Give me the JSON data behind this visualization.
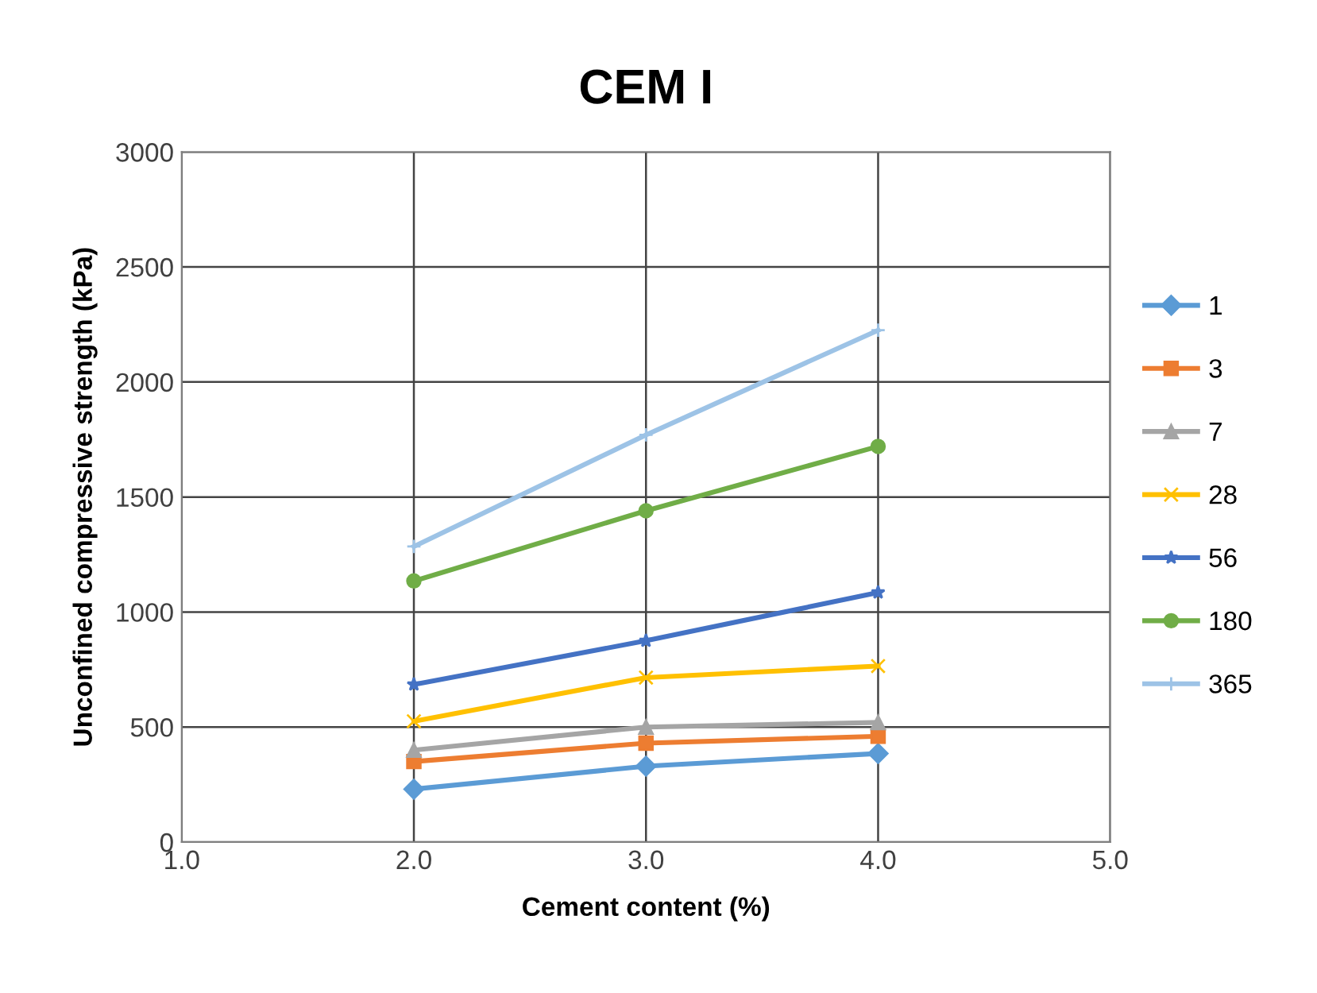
{
  "chart_data": {
    "type": "line",
    "title": "CEM I",
    "xlabel": "Cement content (%)",
    "ylabel": "Unconfined compressive strength (kPa)",
    "x": [
      2.0,
      3.0,
      4.0
    ],
    "xlim": [
      1.0,
      5.0
    ],
    "xticks": [
      {
        "value": 1.0,
        "label": "1.0"
      },
      {
        "value": 2.0,
        "label": "2.0"
      },
      {
        "value": 3.0,
        "label": "3.0"
      },
      {
        "value": 4.0,
        "label": "4.0"
      },
      {
        "value": 5.0,
        "label": "5.0"
      }
    ],
    "ylim": [
      0,
      3000
    ],
    "yticks": [
      0,
      500,
      1000,
      1500,
      2000,
      2500,
      3000
    ],
    "grid": true,
    "legend": "right",
    "series": [
      {
        "name": "1",
        "color": "#5b9bd5",
        "marker": "diamond",
        "values": [
          230,
          330,
          385
        ]
      },
      {
        "name": "3",
        "color": "#ed7d31",
        "marker": "square",
        "values": [
          350,
          430,
          460
        ]
      },
      {
        "name": "7",
        "color": "#a5a5a5",
        "marker": "triangle",
        "values": [
          400,
          500,
          520
        ]
      },
      {
        "name": "28",
        "color": "#ffc000",
        "marker": "cross",
        "values": [
          525,
          715,
          765
        ]
      },
      {
        "name": "56",
        "color": "#4472c4",
        "marker": "star",
        "values": [
          685,
          875,
          1085
        ]
      },
      {
        "name": "180",
        "color": "#70ad47",
        "marker": "circle",
        "values": [
          1135,
          1440,
          1720
        ]
      },
      {
        "name": "365",
        "color": "#9dc3e6",
        "marker": "plus",
        "values": [
          1285,
          1770,
          2225
        ]
      }
    ]
  }
}
